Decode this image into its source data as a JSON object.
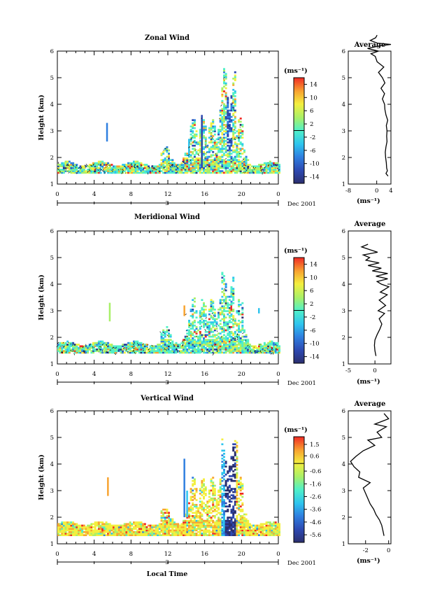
{
  "chart_data": [
    {
      "type": "heatmap",
      "title": "Zonal Wind",
      "ylabel": "Height (km)",
      "xlabel": "",
      "x_ticks": [
        "0",
        "4",
        "8",
        "12",
        "16",
        "20",
        "0"
      ],
      "xlim": [
        0,
        24
      ],
      "y_ticks": [
        "1",
        "2",
        "3",
        "4",
        "5",
        "6"
      ],
      "ylim": [
        1,
        6
      ],
      "day_label": "3",
      "date_label": "Dec 2001",
      "colorbar_unit": "(ms⁻¹)",
      "colorbar_ticks": [
        "14",
        "10",
        "6",
        "2",
        "-2",
        "-6",
        "-10",
        "-14"
      ],
      "colorbar_range": [
        -16,
        16
      ],
      "avg_title": "Average",
      "avg_xlabel": "(ms⁻¹)",
      "avg_x_ticks": [
        "-8",
        "0",
        "4"
      ],
      "avg_xlim": [
        -8,
        4
      ],
      "avg_y_ticks": [
        "1",
        "2",
        "3",
        "4",
        "5",
        "6"
      ],
      "avg_profile": {
        "height": [
          1.3,
          1.4,
          1.5,
          1.6,
          1.8,
          2.0,
          2.2,
          2.4,
          2.6,
          2.8,
          3.0,
          3.2,
          3.4,
          3.6,
          3.8,
          4.0,
          4.2,
          4.4,
          4.6,
          4.8,
          5.0,
          5.2,
          5.4,
          5.6,
          5.8,
          5.9,
          6.0,
          6.1,
          6.2,
          6.25,
          6.3,
          6.4,
          6.5,
          6.6
        ],
        "value": [
          3.2,
          2.6,
          3.0,
          2.8,
          2.7,
          2.5,
          2.4,
          2.6,
          2.9,
          2.8,
          2.9,
          2.7,
          3.1,
          2.6,
          2.3,
          2.2,
          1.6,
          2.2,
          1.2,
          2.3,
          1.6,
          0.5,
          2.0,
          0.1,
          -0.4,
          -1.6,
          0.5,
          -2.6,
          1.0,
          4.0,
          0.2,
          -1.8,
          -0.3,
          0.1
        ]
      }
    },
    {
      "type": "heatmap",
      "title": "Meridional Wind",
      "ylabel": "Height (km)",
      "xlabel": "",
      "x_ticks": [
        "0",
        "4",
        "8",
        "12",
        "16",
        "20",
        "0"
      ],
      "xlim": [
        0,
        24
      ],
      "y_ticks": [
        "1",
        "2",
        "3",
        "4",
        "5",
        "6"
      ],
      "ylim": [
        1,
        6
      ],
      "day_label": "3",
      "date_label": "Dec 2001",
      "colorbar_unit": "(ms⁻¹)",
      "colorbar_ticks": [
        "14",
        "10",
        "6",
        "2",
        "-2",
        "-6",
        "-10",
        "-14"
      ],
      "colorbar_range": [
        -16,
        16
      ],
      "avg_title": "Average",
      "avg_xlabel": "(ms⁻¹)",
      "avg_x_ticks": [
        "-5",
        "0"
      ],
      "avg_xlim": [
        -5,
        3
      ],
      "avg_y_ticks": [
        "1",
        "2",
        "3",
        "4",
        "5",
        "6"
      ],
      "avg_profile": {
        "height": [
          1.3,
          1.5,
          1.7,
          1.9,
          2.1,
          2.3,
          2.5,
          2.7,
          2.9,
          3.0,
          3.2,
          3.4,
          3.6,
          3.7,
          3.9,
          4.0,
          4.1,
          4.2,
          4.3,
          4.4,
          4.5,
          4.6,
          4.7,
          4.8,
          4.9,
          5.0,
          5.1,
          5.2,
          5.3,
          5.4,
          5.5
        ],
        "value": [
          0.2,
          0.0,
          -0.1,
          0.0,
          0.4,
          0.9,
          1.3,
          0.8,
          1.8,
          0.6,
          2.0,
          0.8,
          2.3,
          1.0,
          2.6,
          1.2,
          0.4,
          2.4,
          0.2,
          2.4,
          -0.5,
          1.2,
          -1.3,
          0.8,
          -1.7,
          -1.0,
          -2.2,
          0.5,
          -1.0,
          -2.5,
          -1.3
        ]
      }
    },
    {
      "type": "heatmap",
      "title": "Vertical Wind",
      "ylabel": "Height (km)",
      "xlabel": "Local Time",
      "x_ticks": [
        "0",
        "4",
        "8",
        "12",
        "16",
        "20",
        "0"
      ],
      "xlim": [
        0,
        24
      ],
      "y_ticks": [
        "1",
        "2",
        "3",
        "4",
        "5",
        "6"
      ],
      "ylim": [
        1,
        6
      ],
      "day_label": "3",
      "date_label": "Dec 2001",
      "colorbar_unit": "(ms⁻¹)",
      "colorbar_ticks": [
        "1.5",
        "0.6",
        "-0.6",
        "-1.6",
        "-2.6",
        "-3.6",
        "-4.6",
        "-5.6"
      ],
      "colorbar_range": [
        -6.2,
        2.1
      ],
      "avg_title": "Average",
      "avg_xlabel": "(ms⁻¹)",
      "avg_x_ticks": [
        "-2",
        "0"
      ],
      "avg_xlim": [
        -3.5,
        0.2
      ],
      "avg_y_ticks": [
        "1",
        "2",
        "3",
        "4",
        "5",
        "6"
      ],
      "avg_profile": {
        "height": [
          1.3,
          1.5,
          1.7,
          1.9,
          2.1,
          2.3,
          2.5,
          2.7,
          2.9,
          3.1,
          3.3,
          3.5,
          3.7,
          3.9,
          4.1,
          4.3,
          4.5,
          4.7,
          4.9,
          5.0,
          5.2,
          5.4,
          5.5,
          5.7,
          5.9
        ],
        "value": [
          -0.4,
          -0.5,
          -0.6,
          -0.8,
          -1.1,
          -1.3,
          -1.6,
          -1.8,
          -2.0,
          -2.2,
          -1.6,
          -2.6,
          -2.5,
          -3.0,
          -3.3,
          -2.8,
          -2.2,
          -1.2,
          -1.8,
          -0.6,
          -1.0,
          -0.2,
          -1.2,
          0.0,
          -0.4
        ]
      }
    }
  ]
}
